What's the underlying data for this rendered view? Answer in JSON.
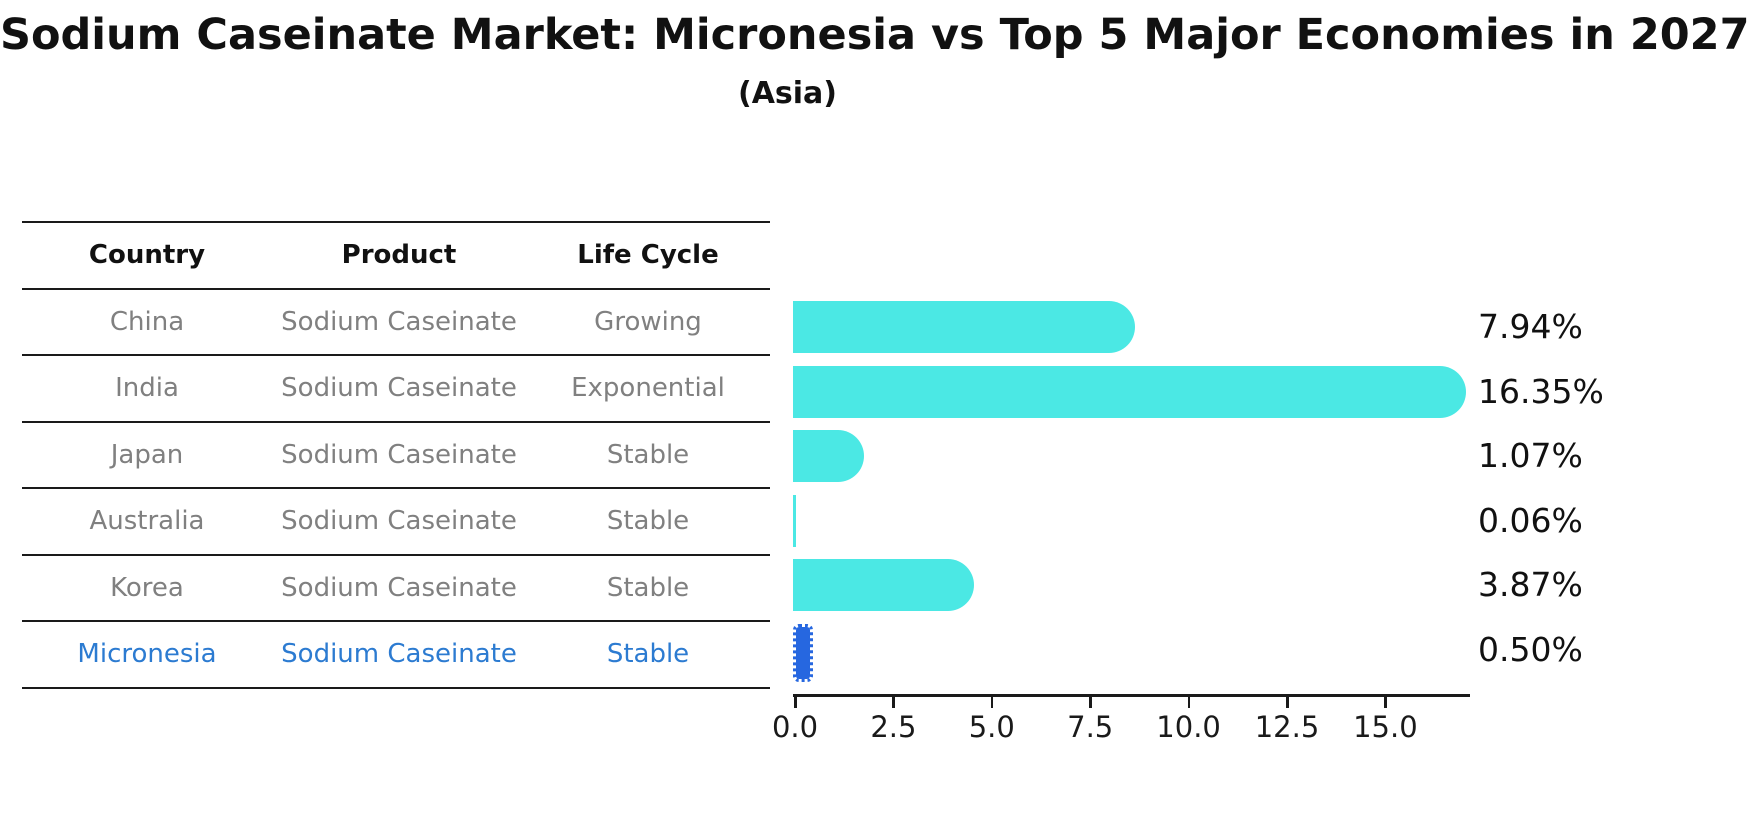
{
  "header": {
    "title": "Sodium Caseinate Market: Micronesia vs Top 5 Major Economies in 2027",
    "subtitle": "(Asia)"
  },
  "table": {
    "headers": [
      "Country",
      "Product",
      "Life Cycle"
    ],
    "rows": [
      {
        "country": "China",
        "product": "Sodium Caseinate",
        "life_cycle": "Growing",
        "highlight": false
      },
      {
        "country": "India",
        "product": "Sodium Caseinate",
        "life_cycle": "Exponential",
        "highlight": false
      },
      {
        "country": "Japan",
        "product": "Sodium Caseinate",
        "life_cycle": "Stable",
        "highlight": false
      },
      {
        "country": "Australia",
        "product": "Sodium Caseinate",
        "life_cycle": "Stable",
        "highlight": false
      },
      {
        "country": "Korea",
        "product": "Sodium Caseinate",
        "life_cycle": "Stable",
        "highlight": false
      },
      {
        "country": "Micronesia",
        "product": "Sodium Caseinate",
        "life_cycle": "Stable",
        "highlight": true
      }
    ]
  },
  "chart_data": {
    "type": "bar",
    "orientation": "horizontal",
    "title": "Sodium Caseinate Market: Micronesia vs Top 5 Major Economies in 2027 (Asia)",
    "categories": [
      "China",
      "India",
      "Japan",
      "Australia",
      "Korea",
      "Micronesia"
    ],
    "values": [
      7.94,
      16.35,
      1.07,
      0.06,
      3.87,
      0.5
    ],
    "value_labels": [
      "7.94%",
      "16.35%",
      "1.07%",
      "0.06%",
      "3.87%",
      "0.50%"
    ],
    "x_ticks": [
      0.0,
      2.5,
      5.0,
      7.5,
      10.0,
      12.5,
      15.0
    ],
    "x_tick_labels": [
      "0.0",
      "2.5",
      "5.0",
      "7.5",
      "10.0",
      "12.5",
      "15.0"
    ],
    "xlim": [
      0,
      17.2
    ],
    "grid": false,
    "legend": "none",
    "highlight_index": 5,
    "bar_style": "rounded-end",
    "highlight_bar_style": "sketch"
  },
  "colors": {
    "bar": "#4BE8E4",
    "highlight_bar": "#2667E0",
    "highlight_text": "#2C7BD1",
    "row_text": "#808080",
    "header_text": "#111111",
    "axis": "#1a1a1a"
  }
}
